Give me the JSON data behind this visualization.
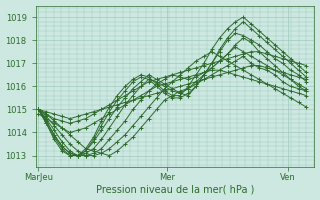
{
  "xlabel": "Pression niveau de la mer( hPa )",
  "bg_color": "#cce8e0",
  "grid_color": "#a0c8bc",
  "line_color": "#2d6b2d",
  "axis_label_color": "#2d6b2d",
  "tick_label_color": "#2d6b2d",
  "ylim": [
    1012.5,
    1019.5
  ],
  "yticks": [
    1013,
    1014,
    1015,
    1016,
    1017,
    1018,
    1019
  ],
  "xtick_positions": [
    0.0,
    0.48,
    0.93
  ],
  "xtick_labels": [
    "MarJeu",
    "Mer",
    "Ven"
  ],
  "series": [
    [
      1015.0,
      1014.8,
      1014.5,
      1014.2,
      1013.9,
      1013.6,
      1013.3,
      1013.2,
      1013.1,
      1013.0,
      1013.2,
      1013.5,
      1013.8,
      1014.2,
      1014.6,
      1015.0,
      1015.4,
      1015.6,
      1015.8,
      1015.9,
      1016.1,
      1016.3,
      1016.5,
      1016.7,
      1016.9,
      1017.1,
      1017.3,
      1017.0,
      1016.8,
      1016.7,
      1016.5,
      1016.2,
      1016.0,
      1015.9,
      1015.8
    ],
    [
      1015.0,
      1014.7,
      1014.3,
      1013.9,
      1013.5,
      1013.2,
      1013.0,
      1013.0,
      1013.1,
      1013.3,
      1013.6,
      1013.9,
      1014.3,
      1014.7,
      1015.1,
      1015.5,
      1015.9,
      1016.2,
      1016.5,
      1016.8,
      1017.1,
      1017.3,
      1017.5,
      1017.3,
      1017.1,
      1016.9,
      1016.7,
      1016.5,
      1016.3,
      1016.1,
      1015.9,
      1015.7,
      1015.5,
      1015.3,
      1015.1
    ],
    [
      1015.0,
      1014.6,
      1014.1,
      1013.6,
      1013.2,
      1013.0,
      1013.0,
      1013.1,
      1013.3,
      1013.7,
      1014.1,
      1014.5,
      1015.0,
      1015.4,
      1015.8,
      1016.1,
      1016.3,
      1016.5,
      1016.4,
      1016.3,
      1016.4,
      1016.6,
      1016.8,
      1017.1,
      1017.4,
      1017.7,
      1017.5,
      1017.3,
      1017.1,
      1016.9,
      1016.7,
      1016.5,
      1016.3,
      1016.1,
      1015.9
    ],
    [
      1015.0,
      1014.5,
      1013.9,
      1013.4,
      1013.1,
      1013.0,
      1013.1,
      1013.3,
      1013.7,
      1014.2,
      1014.7,
      1015.2,
      1015.6,
      1016.0,
      1016.3,
      1016.2,
      1016.0,
      1015.8,
      1015.7,
      1015.9,
      1016.2,
      1016.5,
      1016.8,
      1017.1,
      1017.4,
      1017.8,
      1018.1,
      1017.9,
      1017.5,
      1017.2,
      1016.9,
      1016.6,
      1016.3,
      1016.0,
      1015.8
    ],
    [
      1015.0,
      1014.5,
      1013.9,
      1013.4,
      1013.1,
      1013.0,
      1013.2,
      1013.6,
      1014.1,
      1014.6,
      1015.1,
      1015.5,
      1015.9,
      1016.2,
      1016.5,
      1016.3,
      1016.1,
      1015.9,
      1015.7,
      1015.6,
      1016.0,
      1016.5,
      1017.0,
      1017.5,
      1018.0,
      1018.3,
      1018.2,
      1018.0,
      1017.8,
      1017.5,
      1017.2,
      1017.0,
      1016.7,
      1016.5,
      1016.2
    ],
    [
      1015.0,
      1014.4,
      1013.8,
      1013.3,
      1013.0,
      1013.0,
      1013.2,
      1013.7,
      1014.3,
      1014.9,
      1015.4,
      1015.8,
      1016.2,
      1016.4,
      1016.3,
      1016.0,
      1015.7,
      1015.5,
      1015.5,
      1015.7,
      1016.0,
      1016.5,
      1017.0,
      1017.6,
      1018.1,
      1018.5,
      1018.8,
      1018.5,
      1018.2,
      1017.9,
      1017.6,
      1017.3,
      1017.0,
      1016.7,
      1016.4
    ],
    [
      1015.0,
      1014.4,
      1013.7,
      1013.2,
      1013.0,
      1013.0,
      1013.3,
      1013.8,
      1014.5,
      1015.1,
      1015.6,
      1016.0,
      1016.3,
      1016.5,
      1016.4,
      1016.1,
      1015.8,
      1015.6,
      1015.6,
      1016.0,
      1016.5,
      1017.0,
      1017.6,
      1018.1,
      1018.5,
      1018.8,
      1019.0,
      1018.7,
      1018.4,
      1018.1,
      1017.8,
      1017.5,
      1017.2,
      1016.9,
      1016.6
    ],
    [
      1015.0,
      1014.8,
      1014.6,
      1014.5,
      1014.4,
      1014.5,
      1014.6,
      1014.8,
      1015.0,
      1015.2,
      1015.4,
      1015.6,
      1015.8,
      1016.0,
      1016.2,
      1016.3,
      1016.4,
      1016.5,
      1016.6,
      1016.7,
      1016.8,
      1016.9,
      1017.0,
      1017.1,
      1017.2,
      1017.3,
      1017.4,
      1017.5,
      1017.5,
      1017.4,
      1017.3,
      1017.2,
      1017.1,
      1017.0,
      1016.9
    ],
    [
      1015.0,
      1014.9,
      1014.8,
      1014.7,
      1014.6,
      1014.7,
      1014.8,
      1014.9,
      1015.0,
      1015.1,
      1015.2,
      1015.3,
      1015.4,
      1015.5,
      1015.6,
      1015.7,
      1015.8,
      1015.9,
      1016.0,
      1016.1,
      1016.2,
      1016.3,
      1016.4,
      1016.5,
      1016.6,
      1016.7,
      1016.8,
      1016.9,
      1016.9,
      1016.8,
      1016.7,
      1016.6,
      1016.5,
      1016.4,
      1016.3
    ],
    [
      1014.8,
      1014.6,
      1014.4,
      1014.2,
      1014.0,
      1014.1,
      1014.2,
      1014.4,
      1014.6,
      1014.8,
      1015.0,
      1015.2,
      1015.4,
      1015.6,
      1015.8,
      1016.0,
      1016.1,
      1016.2,
      1016.3,
      1016.4,
      1016.5,
      1016.6,
      1016.7,
      1016.7,
      1016.6,
      1016.5,
      1016.4,
      1016.3,
      1016.2,
      1016.1,
      1016.0,
      1015.9,
      1015.8,
      1015.7,
      1015.6
    ]
  ]
}
